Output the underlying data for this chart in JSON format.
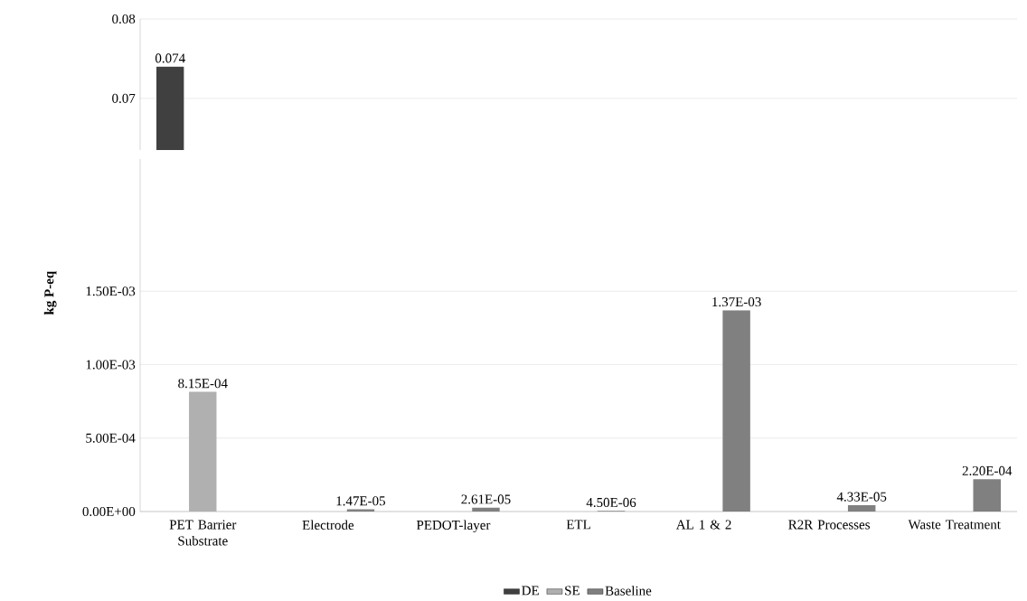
{
  "chart_data": [
    {
      "type": "bar",
      "categories": [
        null,
        null,
        null,
        null,
        null,
        null,
        null
      ],
      "ylim": [
        0.0635,
        0.08
      ],
      "yticks": [
        0.07,
        0.08
      ],
      "grid": "y",
      "tick_labels": "y",
      "series": [
        {
          "color": "#404040",
          "values": [
            0.074,
            null,
            null,
            null,
            null,
            null,
            null
          ],
          "value_labels": [
            "0.074",
            null,
            null,
            null,
            null,
            null,
            null
          ]
        }
      ]
    },
    {
      "type": "bar",
      "categories": [
        "PET Barrier Substrate",
        "Electrode",
        "PEDOT-layer",
        "ETL",
        "AL 1 & 2",
        "R2R Processes",
        "Waste Treatment"
      ],
      "ylabel": "kg P-eq",
      "ylim": [
        0,
        0.0024
      ],
      "yticks": [
        {
          "value": 0,
          "label": "0.00E+00"
        },
        {
          "value": 0.0005,
          "label": "5.00E-04"
        },
        {
          "value": 0.001,
          "label": "1.00E-03"
        },
        {
          "value": 0.0015,
          "label": "1.50E-03"
        }
      ],
      "grid": "y",
      "legend": "bottom",
      "series": [
        {
          "name": "DE",
          "color": "#404040",
          "values": [
            null,
            null,
            null,
            null,
            null,
            null,
            null
          ]
        },
        {
          "name": "SE",
          "color": "#b0b0b0",
          "values": [
            0.000815,
            null,
            null,
            null,
            null,
            null,
            null
          ],
          "value_labels": [
            "8.15E-04",
            null,
            null,
            null,
            null,
            null,
            null
          ]
        },
        {
          "name": "Baseline",
          "color": "#808080",
          "values": [
            null,
            1.47e-05,
            2.61e-05,
            4.5e-06,
            0.00137,
            4.33e-05,
            0.00022
          ],
          "value_labels": [
            null,
            "1.47E-05",
            "2.61E-05",
            "4.50E-06",
            "1.37E-03",
            "4.33E-05",
            "2.20E-04"
          ]
        }
      ]
    }
  ]
}
